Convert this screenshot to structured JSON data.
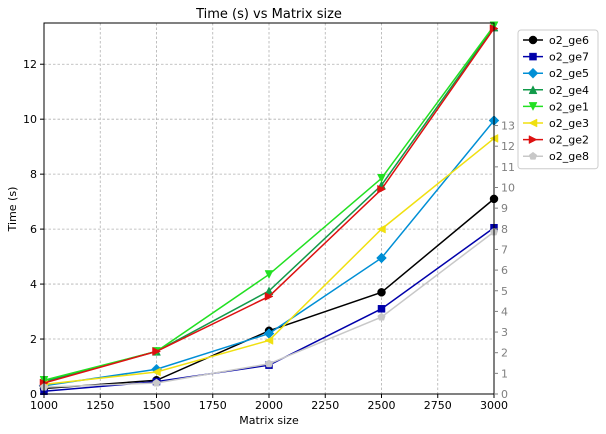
{
  "chart_data": {
    "type": "line",
    "title": "Time (s) vs Matrix size",
    "xlabel": "Matrix size",
    "ylabel": "Time (s)",
    "xlim": [
      1000,
      3000
    ],
    "ylim": [
      0,
      13.5
    ],
    "x_ticks": [
      "1000",
      "1250",
      "1500",
      "1750",
      "2000",
      "2250",
      "2500",
      "2750",
      "3000"
    ],
    "y_ticks": [
      "0",
      "2",
      "4",
      "6",
      "8",
      "10",
      "12"
    ],
    "secondary_y_ticks": [
      "0",
      "1",
      "2",
      "3",
      "4",
      "5",
      "6",
      "7",
      "8",
      "9",
      "10",
      "11",
      "12",
      "13"
    ],
    "grid": true,
    "legend_position": "outside upper-right",
    "x": [
      1000,
      1500,
      2000,
      2500,
      3000
    ],
    "series": [
      {
        "name": "o2_ge6",
        "color": "#000000",
        "marker": "circle",
        "values": [
          0.2,
          0.5,
          2.3,
          3.7,
          7.1
        ]
      },
      {
        "name": "o2_ge7",
        "color": "#0000aa",
        "marker": "square",
        "values": [
          0.1,
          0.45,
          1.05,
          3.1,
          6.05
        ]
      },
      {
        "name": "o2_ge5",
        "color": "#008fd5",
        "marker": "diamond",
        "values": [
          0.3,
          0.9,
          2.2,
          4.95,
          9.95
        ]
      },
      {
        "name": "o2_ge4",
        "color": "#129a4a",
        "marker": "triangle-up",
        "values": [
          0.45,
          1.55,
          3.75,
          7.6,
          13.35
        ]
      },
      {
        "name": "o2_ge1",
        "color": "#22e022",
        "marker": "triangle-down",
        "values": [
          0.5,
          1.55,
          4.35,
          7.85,
          13.4
        ]
      },
      {
        "name": "o2_ge3",
        "color": "#f0e010",
        "marker": "triangle-left",
        "values": [
          0.35,
          0.8,
          1.95,
          6.0,
          9.3
        ]
      },
      {
        "name": "o2_ge2",
        "color": "#dd1111",
        "marker": "triangle-right",
        "values": [
          0.4,
          1.55,
          3.55,
          7.45,
          13.3
        ]
      },
      {
        "name": "o2_ge8",
        "color": "#c8c8c8",
        "marker": "pentagon",
        "values": [
          0.25,
          0.4,
          1.1,
          2.8,
          5.9
        ]
      }
    ]
  }
}
